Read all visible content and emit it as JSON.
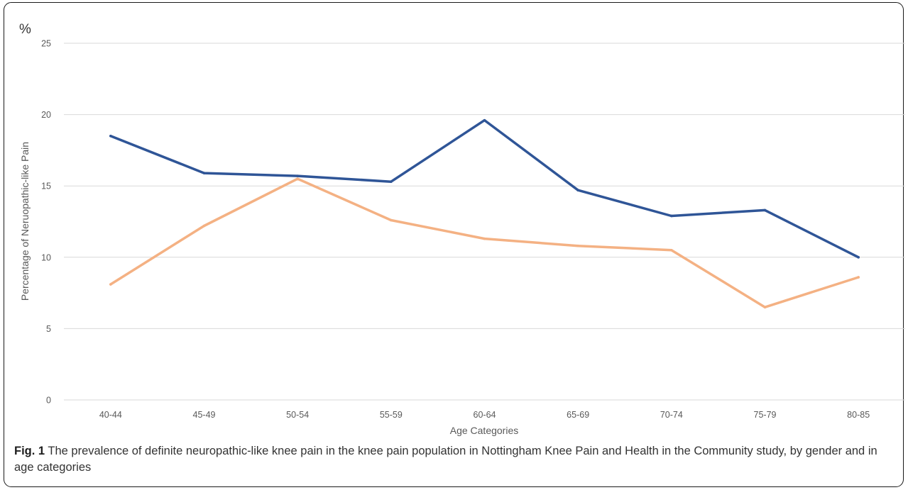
{
  "chart_data": {
    "type": "line",
    "unit_label": "%",
    "xlabel": "Age Categories",
    "ylabel": "Percentage of Neruopathic-like Pain",
    "ylim": [
      0,
      25
    ],
    "yticks": [
      0,
      5,
      10,
      15,
      20,
      25
    ],
    "grid": true,
    "categories": [
      "40-44",
      "45-49",
      "50-54",
      "55-59",
      "60-64",
      "65-69",
      "70-74",
      "75-79",
      "80-85"
    ],
    "series": [
      {
        "color": "#2F5597",
        "values": [
          18.5,
          15.9,
          15.7,
          15.3,
          19.6,
          14.7,
          12.9,
          13.3,
          10.0
        ]
      },
      {
        "color": "#F4B183",
        "values": [
          8.1,
          12.2,
          15.5,
          12.6,
          11.3,
          10.8,
          10.5,
          6.5,
          8.6
        ]
      }
    ]
  },
  "caption": {
    "label": "Fig. 1",
    "text": " The prevalence of definite neuropathic-like knee pain in the knee pain population in Nottingham Knee Pain and Health in the Community study, by gender and in age categories"
  }
}
